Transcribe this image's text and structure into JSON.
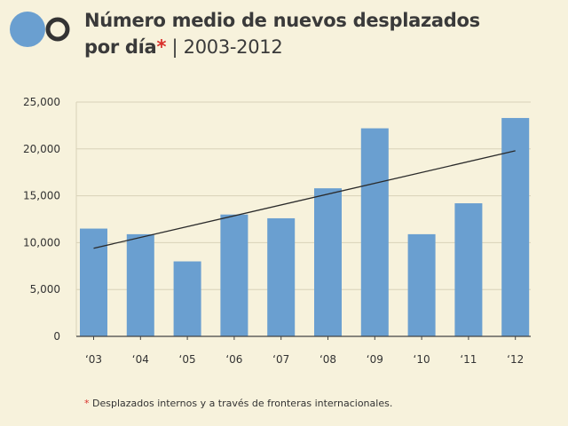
{
  "header": {
    "title_line1": "Número medio de nuevos desplazados",
    "title_line2_prefix": "por día",
    "title_star": "*",
    "title_sep": " | ",
    "title_period": "2003-2012"
  },
  "footnote": {
    "star": "*",
    "text": " Desplazados internos y a través de fronteras internacionales."
  },
  "colors": {
    "background": "#f7f2dc",
    "bar": "#6a9fd0",
    "trend": "#2a2a2a",
    "accent": "#d9302b",
    "logo_circle": "#6a9fd0",
    "logo_ring": "#333333"
  },
  "chart_data": {
    "type": "bar",
    "categories": [
      "‘03",
      "‘04",
      "‘05",
      "‘06",
      "‘07",
      "‘08",
      "‘09",
      "‘10",
      "‘11",
      "‘12"
    ],
    "values": [
      11500,
      10900,
      8000,
      13000,
      12600,
      15800,
      22200,
      10900,
      14200,
      23300
    ],
    "trendline": {
      "start": 9400,
      "end": 19800
    },
    "ylim": [
      0,
      25000
    ],
    "yticks": [
      "0",
      "5,000",
      "10,000",
      "15,000",
      "20,000",
      "25,000"
    ],
    "ytick_values": [
      0,
      5000,
      10000,
      15000,
      20000,
      25000
    ],
    "grid": true
  }
}
